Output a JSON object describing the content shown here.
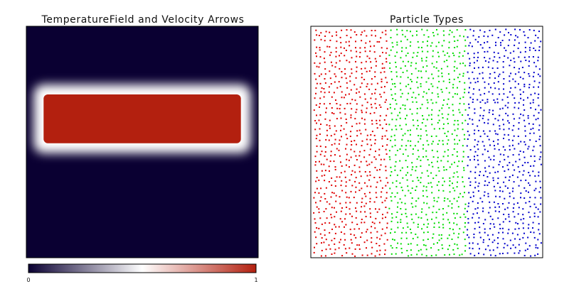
{
  "chart_data": [
    {
      "type": "heatmap",
      "title": "TemperatureField and Velocity Arrows",
      "field": {
        "domain": {
          "x": [
            0,
            1
          ],
          "y": [
            0,
            1
          ]
        },
        "background_value": 0,
        "hot_region": {
          "x": [
            0.05,
            0.95
          ],
          "y": [
            0.27,
            0.53
          ],
          "value": 1,
          "edge_smoothing": 0.03
        }
      },
      "colorbar": {
        "min": 0,
        "max": 1,
        "tick_labels": [
          "0",
          "1"
        ],
        "colors": [
          "#0a0032",
          "#ffffff",
          "#b3200f"
        ]
      }
    },
    {
      "type": "scatter",
      "title": "Particle Types",
      "domain": {
        "x": [
          0,
          1
        ],
        "y": [
          0,
          1
        ]
      },
      "regions": [
        {
          "color": "#e00000",
          "x_range": [
            0,
            0.33
          ]
        },
        {
          "color": "#00dd00",
          "x_range": [
            0.33,
            0.67
          ]
        },
        {
          "color": "#0000cc",
          "x_range": [
            0.67,
            1
          ]
        }
      ],
      "approx_count_per_region": 650
    }
  ]
}
